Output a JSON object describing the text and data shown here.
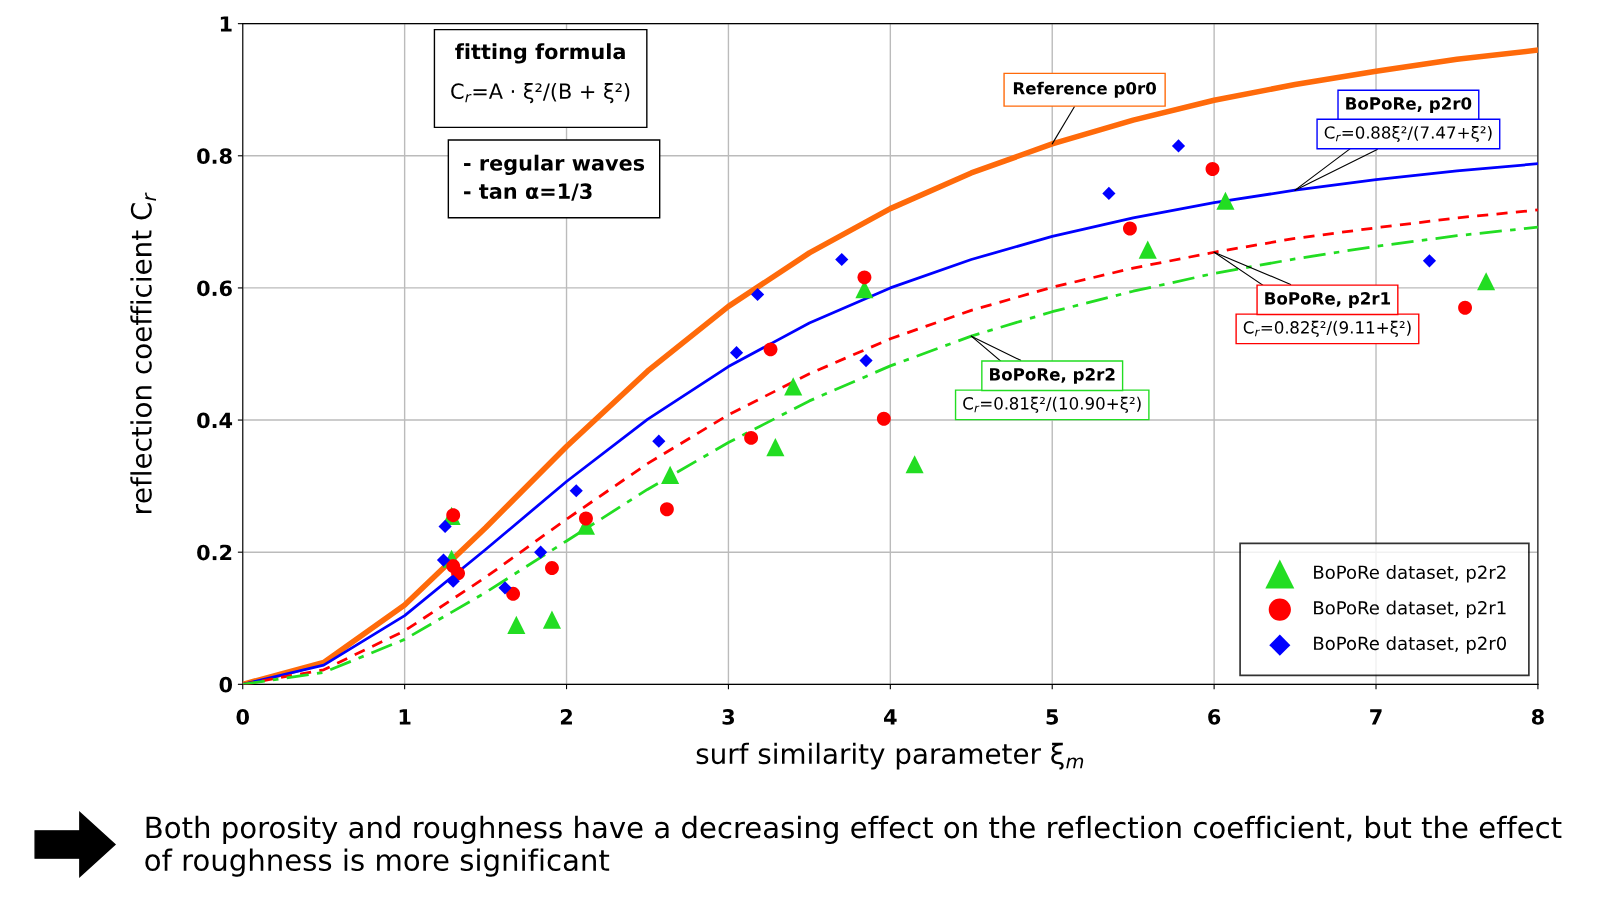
{
  "chart_data": {
    "type": "scatter",
    "xlabel": "surf similarity parameter ξ$_{m}$",
    "ylabel": "reflection coefficient C$_{r}$",
    "xlim": [
      0,
      8
    ],
    "ylim": [
      0,
      1
    ],
    "xticks": [
      0,
      1,
      2,
      3,
      4,
      5,
      6,
      7,
      8
    ],
    "yticks": [
      0,
      0.2,
      0.4,
      0.6,
      0.8,
      1
    ],
    "grid": true,
    "legend": "bottom right",
    "series": [
      {
        "type": "line",
        "name": "Reference p0r0",
        "color": "#ff6a0a",
        "line_style": "solid",
        "marker": "none",
        "x": [
          0,
          0.5,
          1,
          1.5,
          2,
          2.5,
          3,
          3.5,
          4,
          4.5,
          5,
          5.5,
          6,
          6.5,
          7,
          7.5,
          8
        ],
        "values": [
          0,
          0.033,
          0.12,
          0.237,
          0.36,
          0.474,
          0.572,
          0.653,
          0.72,
          0.774,
          0.818,
          0.854,
          0.884,
          0.908,
          0.928,
          0.946,
          0.96
        ]
      },
      {
        "type": "line",
        "name": "BoPoRe, p2r0",
        "color": "#0000ff",
        "line_style": "solid",
        "marker": "none",
        "x": [
          0,
          0.5,
          1,
          1.5,
          2,
          2.5,
          3,
          3.5,
          4,
          4.5,
          5,
          5.5,
          6,
          6.5,
          7,
          7.5,
          8
        ],
        "values": [
          0,
          0.029,
          0.104,
          0.204,
          0.307,
          0.401,
          0.481,
          0.547,
          0.6,
          0.643,
          0.678,
          0.706,
          0.729,
          0.748,
          0.764,
          0.777,
          0.788
        ]
      },
      {
        "type": "line",
        "name": "BoPoRe, p2r1",
        "color": "#ff0000",
        "line_style": "dashed",
        "marker": "none",
        "x": [
          0,
          0.5,
          1,
          1.5,
          2,
          2.5,
          3,
          3.5,
          4,
          4.5,
          5,
          5.5,
          6,
          6.5,
          7,
          7.5,
          8
        ],
        "values": [
          0,
          0.022,
          0.081,
          0.162,
          0.25,
          0.334,
          0.408,
          0.47,
          0.523,
          0.566,
          0.601,
          0.63,
          0.654,
          0.675,
          0.691,
          0.706,
          0.718
        ]
      },
      {
        "type": "line",
        "name": "BoPoRe, p2r2",
        "color": "#22dd22",
        "line_style": "dashdot",
        "marker": "none",
        "x": [
          0,
          0.5,
          1,
          1.5,
          2,
          2.5,
          3,
          3.5,
          4,
          4.5,
          5,
          5.5,
          6,
          6.5,
          7,
          7.5,
          8
        ],
        "values": [
          0,
          0.018,
          0.068,
          0.139,
          0.217,
          0.295,
          0.366,
          0.429,
          0.482,
          0.527,
          0.564,
          0.595,
          0.622,
          0.644,
          0.663,
          0.679,
          0.692
        ]
      },
      {
        "type": "scatter",
        "name": "BoPoRe dataset, p2r2",
        "color": "#22dd22",
        "marker": "triangle",
        "x": [
          1.29,
          1.29,
          1.69,
          1.91,
          2.12,
          2.64,
          3.29,
          3.4,
          3.84,
          4.15,
          5.59,
          6.07,
          7.68
        ],
        "values": [
          0.255,
          0.19,
          0.09,
          0.098,
          0.24,
          0.317,
          0.359,
          0.451,
          0.598,
          0.333,
          0.658,
          0.732,
          0.61
        ]
      },
      {
        "type": "scatter",
        "name": "BoPoRe dataset, p2r1",
        "color": "#ff0000",
        "marker": "circle",
        "x": [
          1.3,
          1.3,
          1.33,
          1.67,
          1.91,
          2.12,
          2.62,
          3.14,
          3.26,
          3.84,
          3.96,
          5.48,
          5.99,
          7.55
        ],
        "values": [
          0.256,
          0.179,
          0.168,
          0.137,
          0.176,
          0.251,
          0.265,
          0.373,
          0.507,
          0.616,
          0.402,
          0.69,
          0.78,
          0.57
        ]
      },
      {
        "type": "scatter",
        "name": "BoPoRe dataset, p2r0",
        "color": "#0000ff",
        "marker": "diamond",
        "x": [
          1.25,
          1.24,
          1.3,
          1.62,
          1.84,
          2.06,
          2.57,
          3.05,
          3.18,
          3.7,
          3.85,
          5.35,
          5.78,
          7.33
        ],
        "values": [
          0.239,
          0.188,
          0.156,
          0.146,
          0.2,
          0.293,
          0.368,
          0.502,
          0.59,
          0.643,
          0.49,
          0.743,
          0.815,
          0.641
        ]
      }
    ],
    "annotations": [
      {
        "text": "C$_{r}$=0.88ξ²/(7.47+ξ²)",
        "x": 6.5,
        "y": 0.748
      },
      {
        "text": "C$_{r}$=0.82ξ²/(9.11+ξ²)",
        "x": 6.0,
        "y": 0.654
      },
      {
        "text": "C$_{r}$=0.81ξ²/(10.90+ξ²)",
        "x": 4.5,
        "y": 0.527
      },
      "fitting formula",
      "C$_{r}$=A · ξ²/(B + ξ²)",
      "- regular waves\n- tan α=1/3",
      "Both porosity and roughness have a decreasing effect on the reflection coefficient, but the effect of roughness is more significant"
    ]
  }
}
